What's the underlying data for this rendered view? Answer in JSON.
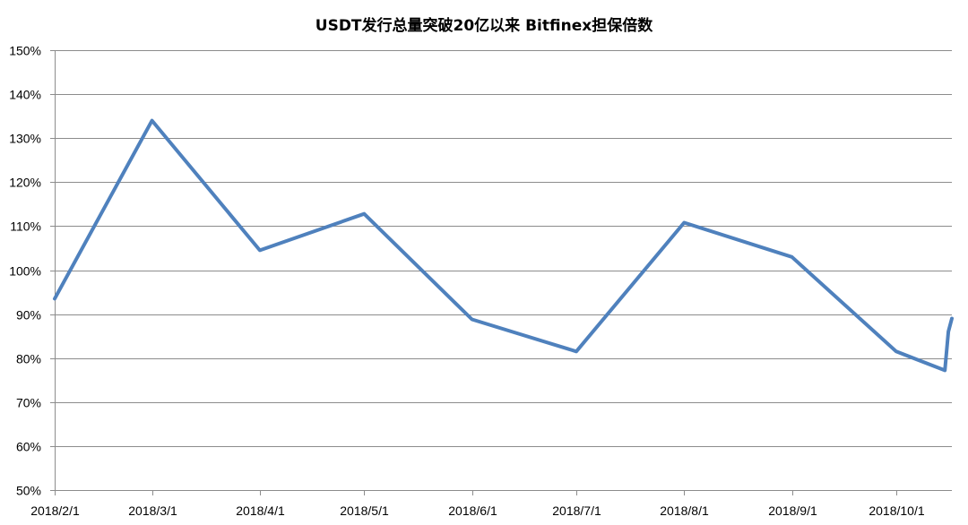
{
  "chart_data": {
    "type": "line",
    "title": "USDT发行总量突破20亿以来 Bitfinex担保倍数",
    "xlabel": "",
    "ylabel": "",
    "x_ticks": [
      "2018/2/1",
      "2018/3/1",
      "2018/4/1",
      "2018/5/1",
      "2018/6/1",
      "2018/7/1",
      "2018/8/1",
      "2018/9/1",
      "2018/10/1"
    ],
    "y_ticks": [
      "50%",
      "60%",
      "70%",
      "80%",
      "90%",
      "100%",
      "110%",
      "120%",
      "130%",
      "140%",
      "150%"
    ],
    "ylim": [
      0.5,
      1.5
    ],
    "xlim": [
      "2018-02-01",
      "2018-10-17"
    ],
    "grid": "horizontal",
    "legend": "none",
    "series": [
      {
        "color": "#4f81bd",
        "points": [
          {
            "x": "2018-02-01",
            "y": 0.935
          },
          {
            "x": "2018-03-01",
            "y": 1.34
          },
          {
            "x": "2018-04-01",
            "y": 1.045
          },
          {
            "x": "2018-05-01",
            "y": 1.128
          },
          {
            "x": "2018-06-01",
            "y": 0.888
          },
          {
            "x": "2018-07-01",
            "y": 0.815
          },
          {
            "x": "2018-08-01",
            "y": 1.108
          },
          {
            "x": "2018-09-01",
            "y": 1.03
          },
          {
            "x": "2018-10-01",
            "y": 0.815
          },
          {
            "x": "2018-10-15",
            "y": 0.772
          },
          {
            "x": "2018-10-16",
            "y": 0.86
          },
          {
            "x": "2018-10-17",
            "y": 0.89
          }
        ]
      }
    ],
    "colors": {
      "line": "#4f81bd",
      "grid": "#8c8c8c",
      "axis": "#8c8c8c",
      "text": "#000000"
    }
  }
}
